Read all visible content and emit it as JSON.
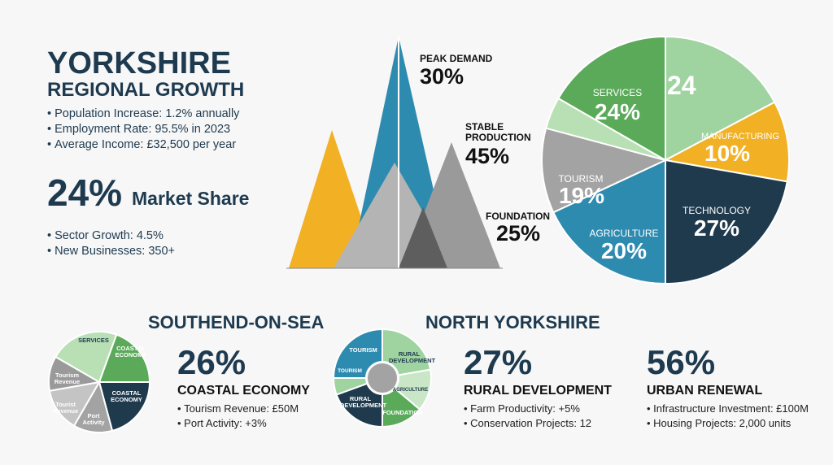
{
  "header": {
    "title": "YORKSHIRE",
    "subtitle": "REGIONAL GROWTH",
    "bullets": [
      "Population Increase: 1.2% annually",
      "Employment Rate: 95.5% in 2023",
      "Average Income: £32,500 per year"
    ]
  },
  "highlight": {
    "value": "24%",
    "label": "Market Share",
    "bullets": [
      "Sector Growth: 4.5%",
      "New Businesses: 350+"
    ]
  },
  "mountains": [
    {
      "label": "PEAK DEMAND",
      "value": "30%"
    },
    {
      "label": "STABLE PRODUCTION",
      "value": "45%"
    },
    {
      "label": "FOUNDATION",
      "value": "25%"
    }
  ],
  "pie": {
    "slices": [
      {
        "label": "SERVICES",
        "value": "24%"
      },
      {
        "value": "24"
      },
      {
        "label": "MANUFACTURING",
        "value": "10%"
      },
      {
        "label": "TECHNOLOGY",
        "value": "27%"
      },
      {
        "label": "AGRICULTURE",
        "value": "20%"
      },
      {
        "label": "TOURISM",
        "value": "19%"
      }
    ]
  },
  "southend": {
    "title": "SOUTHEND-ON-SEA",
    "pie_labels": [
      "SERVICES",
      "COASTAL ECONOMY",
      "COASTAL ECONOMY",
      "Port Activity",
      "Tourist Revenue",
      "Tourism Revenue"
    ],
    "value": "26%",
    "label": "COASTAL ECONOMY",
    "bullets": [
      "Tourism Revenue: £50M",
      "Port Activity: +3%"
    ]
  },
  "north_yorkshire": {
    "title": "NORTH YORKSHIRE",
    "ring_labels": [
      "TOURISM",
      "RURAL DEVELOPMENT",
      "AGRICULTURE",
      "FOUNDATION",
      "RURAL DEVELOPMENT",
      "TOURISM"
    ],
    "stats": [
      {
        "value": "27%",
        "label": "RURAL DEVELOPMENT",
        "bullets": [
          "Farm Productivity: +5%",
          "Conservation Projects: 12"
        ]
      },
      {
        "value": "56%",
        "label": "URBAN RENEWAL",
        "bullets": [
          "Infrastructure Investment: £100M",
          "Housing Projects: 2,000 units"
        ]
      }
    ]
  }
}
